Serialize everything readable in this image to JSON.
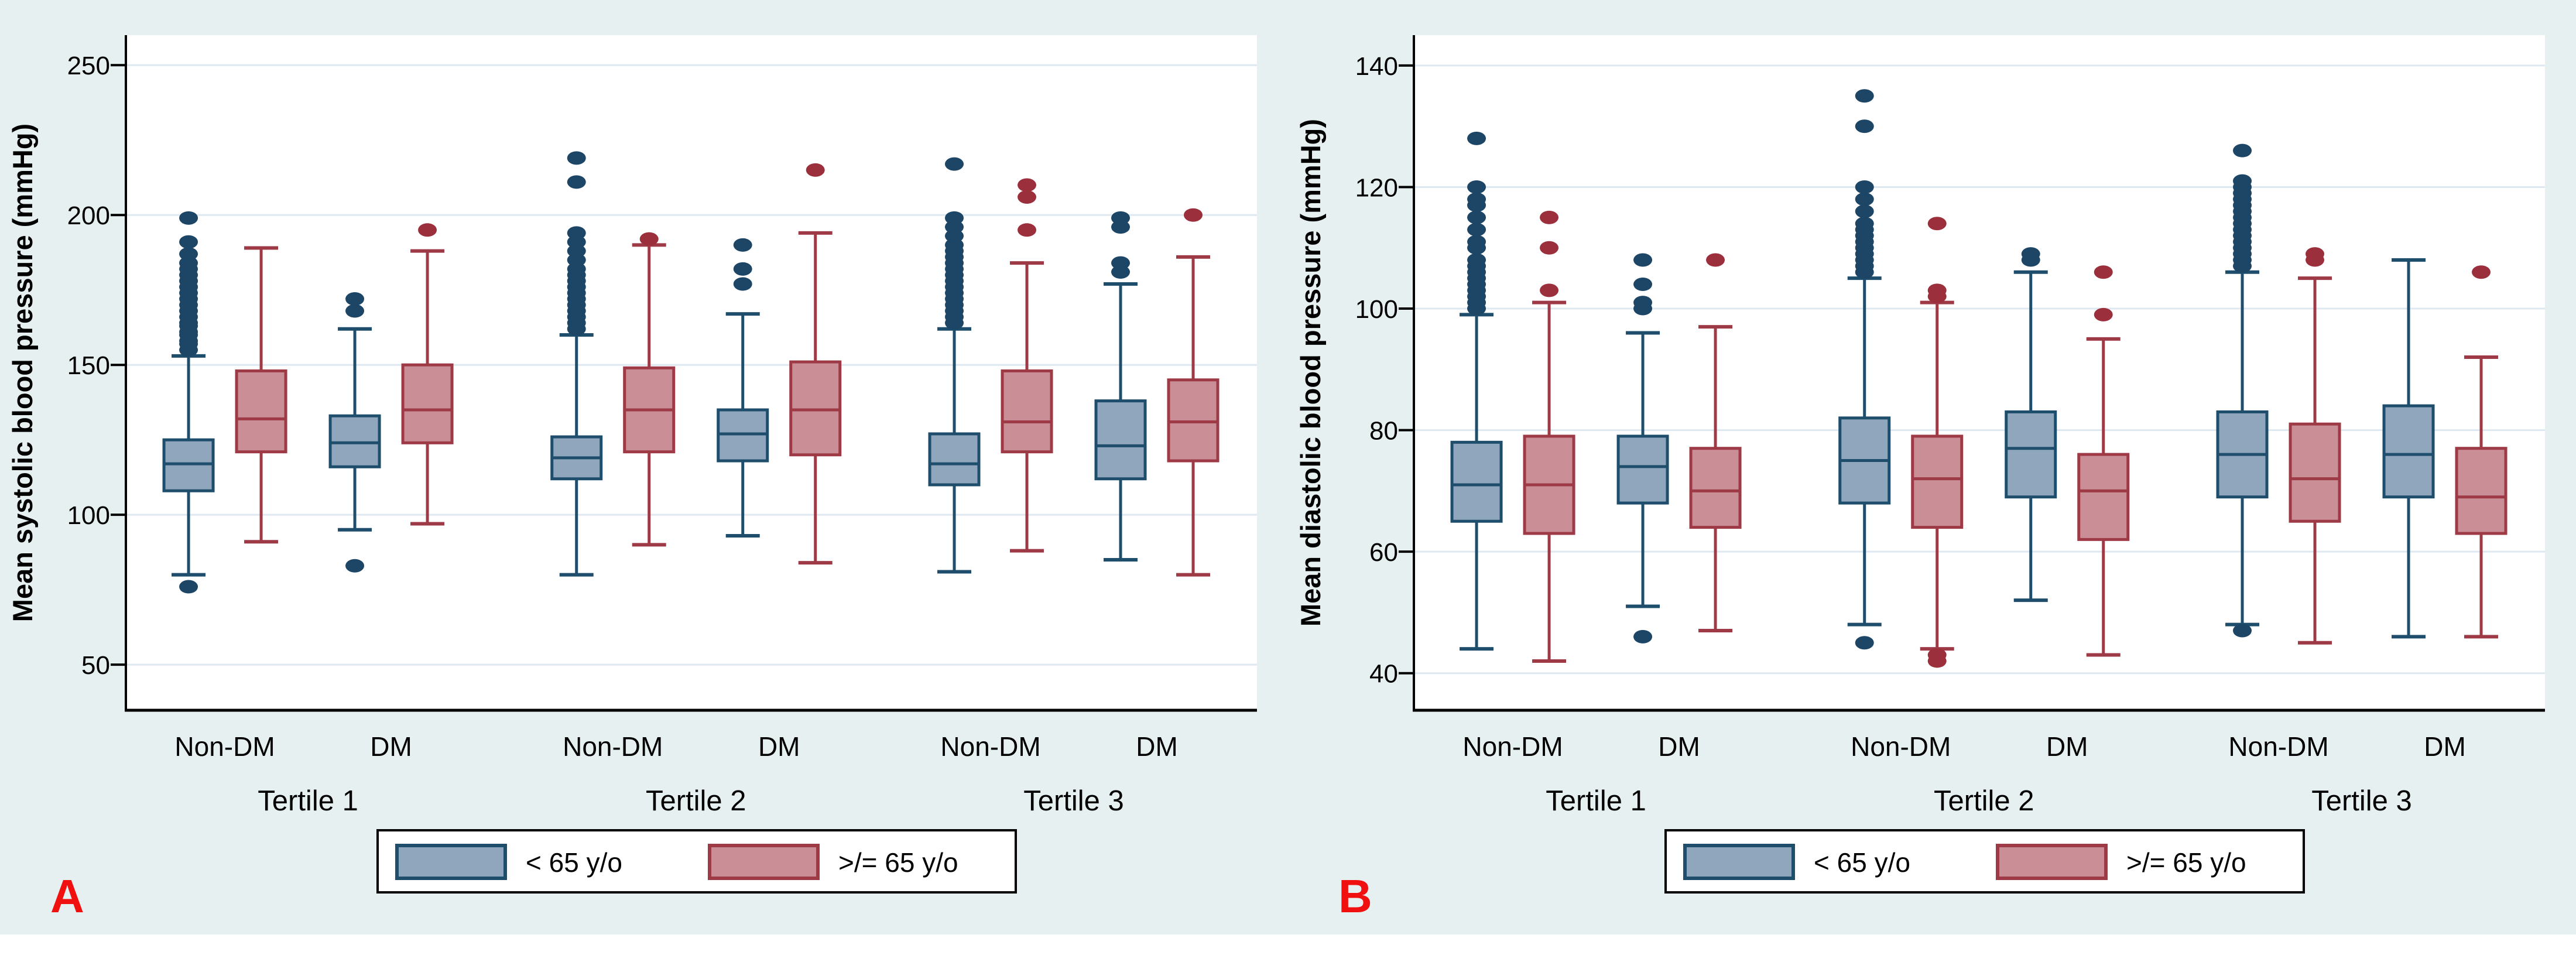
{
  "figure": {
    "background_color": "#e7f0f1",
    "plot_background": "#ffffff",
    "panel_label_color": "#f01010"
  },
  "colors": {
    "young_fill": "#8fa6bc",
    "young_stroke": "#1f4e6d",
    "young_dot": "#1c4566",
    "old_fill": "#ca8e96",
    "old_stroke": "#9e3a46",
    "old_dot": "#9c2f3c",
    "gridline": "#dde8f0",
    "axis": "#000000",
    "text": "#000000"
  },
  "legend": {
    "items": [
      {
        "series": "young",
        "label": "< 65 y/o"
      },
      {
        "series": "old",
        "label": ">/= 65 y/o"
      }
    ]
  },
  "chart_data": [
    {
      "type": "boxplot",
      "panel_label": "A",
      "ylabel": "Mean systolic blood pressure (mmHg)",
      "yticks": [
        50,
        100,
        150,
        200,
        250
      ],
      "ylim": [
        34.8,
        260.0
      ],
      "grid": true,
      "legend_position": "bottom",
      "groups": [
        {
          "label": "Tertile 1",
          "categories": [
            "Non-DM",
            "DM"
          ],
          "boxes": [
            {
              "category": "Non-DM",
              "series": "young",
              "low": 80,
              "q1": 108,
              "median": 117,
              "q3": 125,
              "high": 153,
              "outliers_high": [
                155,
                157,
                158,
                160,
                161,
                163,
                164,
                166,
                168,
                170,
                172,
                174,
                176,
                178,
                180,
                182,
                184,
                187,
                191,
                199
              ],
              "outliers_low": [
                76
              ]
            },
            {
              "category": "Non-DM",
              "series": "old",
              "low": 91,
              "q1": 121,
              "median": 132,
              "q3": 148,
              "high": 189,
              "outliers_high": [],
              "outliers_low": []
            },
            {
              "category": "DM",
              "series": "young",
              "low": 95,
              "q1": 116,
              "median": 124,
              "q3": 133,
              "high": 162,
              "outliers_high": [
                168,
                172
              ],
              "outliers_low": [
                83
              ]
            },
            {
              "category": "DM",
              "series": "old",
              "low": 97,
              "q1": 124,
              "median": 135,
              "q3": 150,
              "high": 188,
              "outliers_high": [
                195
              ],
              "outliers_low": []
            }
          ]
        },
        {
          "label": "Tertile 2",
          "categories": [
            "Non-DM",
            "DM"
          ],
          "boxes": [
            {
              "category": "Non-DM",
              "series": "young",
              "low": 80,
              "q1": 112,
              "median": 119,
              "q3": 126,
              "high": 160,
              "outliers_high": [
                162,
                164,
                166,
                168,
                170,
                172,
                174,
                176,
                178,
                180,
                182,
                185,
                188,
                191,
                194,
                211,
                219
              ],
              "outliers_low": []
            },
            {
              "category": "Non-DM",
              "series": "old",
              "low": 90,
              "q1": 121,
              "median": 135,
              "q3": 149,
              "high": 190,
              "outliers_high": [
                192
              ],
              "outliers_low": []
            },
            {
              "category": "DM",
              "series": "young",
              "low": 93,
              "q1": 118,
              "median": 127,
              "q3": 135,
              "high": 167,
              "outliers_high": [
                177,
                182,
                190
              ],
              "outliers_low": []
            },
            {
              "category": "DM",
              "series": "old",
              "low": 84,
              "q1": 120,
              "median": 135,
              "q3": 151,
              "high": 194,
              "outliers_high": [
                215
              ],
              "outliers_low": []
            }
          ]
        },
        {
          "label": "Tertile 3",
          "categories": [
            "Non-DM",
            "DM"
          ],
          "boxes": [
            {
              "category": "Non-DM",
              "series": "young",
              "low": 81,
              "q1": 110,
              "median": 117,
              "q3": 127,
              "high": 162,
              "outliers_high": [
                164,
                166,
                168,
                170,
                172,
                174,
                176,
                178,
                180,
                182,
                184,
                186,
                188,
                190,
                193,
                196,
                199,
                217
              ],
              "outliers_low": []
            },
            {
              "category": "Non-DM",
              "series": "old",
              "low": 88,
              "q1": 121,
              "median": 131,
              "q3": 148,
              "high": 184,
              "outliers_high": [
                195,
                206,
                210
              ],
              "outliers_low": []
            },
            {
              "category": "DM",
              "series": "young",
              "low": 85,
              "q1": 112,
              "median": 123,
              "q3": 138,
              "high": 177,
              "outliers_high": [
                181,
                184,
                196,
                199
              ],
              "outliers_low": []
            },
            {
              "category": "DM",
              "series": "old",
              "low": 80,
              "q1": 118,
              "median": 131,
              "q3": 145,
              "high": 186,
              "outliers_high": [
                200
              ],
              "outliers_low": []
            }
          ]
        }
      ]
    },
    {
      "type": "boxplot",
      "panel_label": "B",
      "ylabel": "Mean diastolic blood pressure (mmHg)",
      "yticks": [
        40,
        60,
        80,
        100,
        120,
        140
      ],
      "ylim": [
        33.9,
        145.0
      ],
      "grid": true,
      "legend_position": "bottom",
      "groups": [
        {
          "label": "Tertile 1",
          "categories": [
            "Non-DM",
            "DM"
          ],
          "boxes": [
            {
              "category": "Non-DM",
              "series": "young",
              "low": 44,
              "q1": 65,
              "median": 71,
              "q3": 78,
              "high": 99,
              "outliers_high": [
                100,
                101,
                102,
                103,
                104,
                105,
                106,
                107,
                108,
                110,
                111,
                113,
                115,
                117,
                118,
                120,
                128
              ],
              "outliers_low": []
            },
            {
              "category": "Non-DM",
              "series": "old",
              "low": 42,
              "q1": 63,
              "median": 71,
              "q3": 79,
              "high": 101,
              "outliers_high": [
                103,
                110,
                115
              ],
              "outliers_low": []
            },
            {
              "category": "DM",
              "series": "young",
              "low": 51,
              "q1": 68,
              "median": 74,
              "q3": 79,
              "high": 96,
              "outliers_high": [
                100,
                101,
                104,
                108
              ],
              "outliers_low": [
                46
              ]
            },
            {
              "category": "DM",
              "series": "old",
              "low": 47,
              "q1": 64,
              "median": 70,
              "q3": 77,
              "high": 97,
              "outliers_high": [
                108
              ],
              "outliers_low": []
            }
          ]
        },
        {
          "label": "Tertile 2",
          "categories": [
            "Non-DM",
            "DM"
          ],
          "boxes": [
            {
              "category": "Non-DM",
              "series": "young",
              "low": 48,
              "q1": 68,
              "median": 75,
              "q3": 82,
              "high": 105,
              "outliers_high": [
                106,
                107,
                108,
                109,
                110,
                111,
                112,
                113,
                114,
                116,
                118,
                120,
                130,
                135
              ],
              "outliers_low": [
                45
              ]
            },
            {
              "category": "Non-DM",
              "series": "old",
              "low": 44,
              "q1": 64,
              "median": 72,
              "q3": 79,
              "high": 101,
              "outliers_high": [
                102,
                103,
                114
              ],
              "outliers_low": [
                42,
                43
              ]
            },
            {
              "category": "DM",
              "series": "young",
              "low": 52,
              "q1": 69,
              "median": 77,
              "q3": 83,
              "high": 106,
              "outliers_high": [
                108,
                109
              ],
              "outliers_low": []
            },
            {
              "category": "DM",
              "series": "old",
              "low": 43,
              "q1": 62,
              "median": 70,
              "q3": 76,
              "high": 95,
              "outliers_high": [
                99,
                106
              ],
              "outliers_low": []
            }
          ]
        },
        {
          "label": "Tertile 3",
          "categories": [
            "Non-DM",
            "DM"
          ],
          "boxes": [
            {
              "category": "Non-DM",
              "series": "young",
              "low": 48,
              "q1": 69,
              "median": 76,
              "q3": 83,
              "high": 106,
              "outliers_high": [
                107,
                108,
                109,
                110,
                111,
                112,
                113,
                114,
                115,
                116,
                117,
                118,
                119,
                120,
                121,
                126
              ],
              "outliers_low": [
                47
              ]
            },
            {
              "category": "Non-DM",
              "series": "old",
              "low": 45,
              "q1": 65,
              "median": 72,
              "q3": 81,
              "high": 105,
              "outliers_high": [
                108,
                109
              ],
              "outliers_low": []
            },
            {
              "category": "DM",
              "series": "young",
              "low": 46,
              "q1": 69,
              "median": 76,
              "q3": 84,
              "high": 108,
              "outliers_high": [],
              "outliers_low": []
            },
            {
              "category": "DM",
              "series": "old",
              "low": 46,
              "q1": 63,
              "median": 69,
              "q3": 77,
              "high": 92,
              "outliers_high": [
                106
              ],
              "outliers_low": []
            }
          ]
        }
      ]
    }
  ]
}
